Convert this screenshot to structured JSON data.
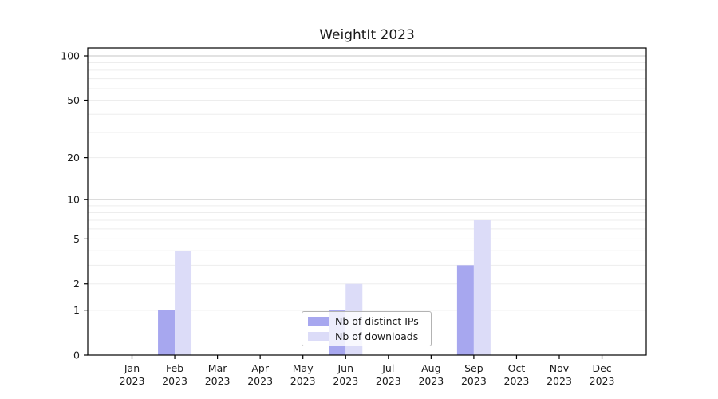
{
  "chart_data": {
    "type": "bar",
    "title": "WeightIt 2023",
    "categories": [
      "Jan",
      "Feb",
      "Mar",
      "Apr",
      "May",
      "Jun",
      "Jul",
      "Aug",
      "Sep",
      "Oct",
      "Nov",
      "Dec"
    ],
    "x_tick_second_line": "2023",
    "series": [
      {
        "name": "Nb of distinct IPs",
        "color": "#a7a7ef",
        "values": [
          0,
          1,
          0,
          0,
          0,
          1,
          0,
          0,
          3,
          0,
          0,
          0
        ]
      },
      {
        "name": "Nb of downloads",
        "color": "#dcdcf8",
        "values": [
          0,
          4,
          0,
          0,
          0,
          2,
          0,
          0,
          7,
          0,
          0,
          0
        ]
      }
    ],
    "y_axis": {
      "scale": "log1p",
      "tick_labels": [
        100,
        50,
        20,
        10,
        5,
        2,
        1,
        0
      ],
      "minor_gridlines": [
        2,
        3,
        4,
        5,
        6,
        7,
        8,
        9,
        20,
        30,
        40,
        50,
        60,
        70,
        80,
        90
      ],
      "major_gridlines": [
        1,
        10,
        100
      ],
      "ylim": [
        0,
        113
      ]
    },
    "legend": {
      "position": "lower-center"
    },
    "grid": true,
    "colors": {
      "grid_minor": "#ededed",
      "grid_major": "#c6c6c6",
      "axis": "#000000",
      "text": "#1a1a1a",
      "background": "#ffffff"
    }
  }
}
